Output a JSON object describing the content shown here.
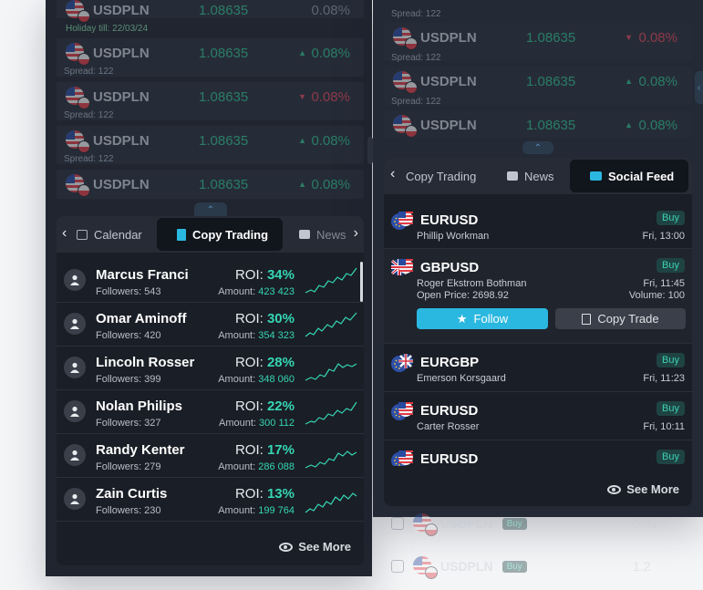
{
  "left_background": {
    "rows": [
      {
        "symbol": "USDPLN",
        "price": "1.08635",
        "change": "0.08%",
        "direction": "neutral",
        "subtext": "Holiday till: 22/03/24"
      },
      {
        "symbol": "USDPLN",
        "price": "1.08635",
        "change": "0.08%",
        "direction": "up",
        "subtext": "Spread: 122"
      },
      {
        "symbol": "USDPLN",
        "price": "1.08635",
        "change": "0.08%",
        "direction": "down",
        "subtext": "Spread: 122"
      },
      {
        "symbol": "USDPLN",
        "price": "1.08635",
        "change": "0.08%",
        "direction": "up",
        "subtext": "Spread: 122"
      },
      {
        "symbol": "USDPLN",
        "price": "1.08635",
        "change": "0.08%",
        "direction": "up",
        "subtext": ""
      }
    ],
    "up_arrow": "▲",
    "down_arrow": "▼"
  },
  "right_background": {
    "top_spread": "Spread: 122",
    "rows": [
      {
        "symbol": "USDPLN",
        "price": "1.08635",
        "change": "0.08%",
        "direction": "down",
        "subtext": "Spread: 122"
      },
      {
        "symbol": "USDPLN",
        "price": "1.08635",
        "change": "0.08%",
        "direction": "up",
        "subtext": "Spread: 122"
      },
      {
        "symbol": "USDPLN",
        "price": "1.08635",
        "change": "0.08%",
        "direction": "up",
        "subtext": ""
      }
    ],
    "bottom_rows": [
      {
        "symbol": "USDPLN",
        "badge": "Buy",
        "value": "0.01"
      },
      {
        "symbol": "USDPLN",
        "badge": "Buy",
        "value": "1.2"
      }
    ]
  },
  "copy_trading": {
    "tabs": [
      "Calendar",
      "Copy Trading",
      "News"
    ],
    "active_tab": "Copy Trading",
    "traders": [
      {
        "name": "Marcus Franci",
        "followers_label": "Followers: 543",
        "roi_label": "ROI:",
        "roi": "34%",
        "amount_label": "Amount:",
        "amount": "423 423"
      },
      {
        "name": "Omar Aminoff",
        "followers_label": "Followers: 420",
        "roi_label": "ROI:",
        "roi": "30%",
        "amount_label": "Amount:",
        "amount": "354 323"
      },
      {
        "name": "Lincoln Rosser",
        "followers_label": "Followers: 399",
        "roi_label": "ROI:",
        "roi": "28%",
        "amount_label": "Amount:",
        "amount": "348 060"
      },
      {
        "name": "Nolan Philips",
        "followers_label": "Followers: 327",
        "roi_label": "ROI:",
        "roi": "22%",
        "amount_label": "Amount:",
        "amount": "300 112"
      },
      {
        "name": "Randy Kenter",
        "followers_label": "Followers: 279",
        "roi_label": "ROI:",
        "roi": "17%",
        "amount_label": "Amount:",
        "amount": "286 088"
      },
      {
        "name": "Zain Curtis",
        "followers_label": "Followers: 230",
        "roi_label": "ROI:",
        "roi": "13%",
        "amount_label": "Amount:",
        "amount": "199 764"
      }
    ],
    "see_more": "See More"
  },
  "social_feed": {
    "tabs": [
      "Copy Trading",
      "News",
      "Social Feed"
    ],
    "active_tab": "Social Feed",
    "posts": [
      {
        "symbol": "EURUSD",
        "badge": "Buy",
        "name": "Phillip Workman",
        "time": "Fri, 13:00",
        "flags": "eu-us"
      },
      {
        "symbol": "GBPUSD",
        "badge": "Buy",
        "name": "Roger Ekstrom Bothman",
        "time": "Fri, 11:45",
        "open_price": "Open Price: 2698.92",
        "volume": "Volume: 100",
        "follow": "Follow",
        "copy": "Copy Trade",
        "flags": "gb-us"
      },
      {
        "symbol": "EURGBP",
        "badge": "Buy",
        "name": "Emerson Korsgaard",
        "time": "Fri, 11:23",
        "flags": "eu-gb"
      },
      {
        "symbol": "EURUSD",
        "badge": "Buy",
        "name": "Carter Rosser",
        "time": "Fri, 10:11",
        "flags": "eu-us"
      },
      {
        "symbol": "EURUSD",
        "badge": "Buy",
        "name": "",
        "time": "",
        "flags": "eu-us"
      }
    ],
    "see_more": "See More"
  },
  "colors": {
    "accent": "#2bb8e0",
    "positive": "#35d6b4",
    "negative": "#e2455a"
  }
}
